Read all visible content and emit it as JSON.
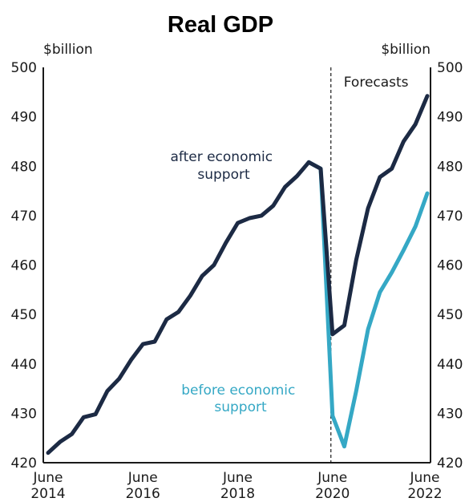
{
  "chart_data": {
    "type": "line",
    "title": "Real GDP",
    "y_unit_left": "$billion",
    "y_unit_right": "$billion",
    "ylim": [
      420,
      500
    ],
    "yticks": [
      420,
      430,
      440,
      450,
      460,
      470,
      480,
      490,
      500
    ],
    "x_tick_labels": [
      {
        "month": "June",
        "year": "2014",
        "x": 2014.25
      },
      {
        "month": "June",
        "year": "2016",
        "x": 2016.25
      },
      {
        "month": "June",
        "year": "2018",
        "x": 2018.25
      },
      {
        "month": "June",
        "year": "2020",
        "x": 2020.25
      },
      {
        "month": "June",
        "year": "2022",
        "x": 2022.25
      }
    ],
    "forecast_start": 2020.25,
    "forecast_label": "Forecasts",
    "series": [
      {
        "name": "after economic support",
        "color": "#1c2a44",
        "x": [
          2014.25,
          2014.5,
          2014.75,
          2015.0,
          2015.25,
          2015.5,
          2015.75,
          2016.0,
          2016.25,
          2016.5,
          2016.75,
          2017.0,
          2017.25,
          2017.5,
          2017.75,
          2018.0,
          2018.25,
          2018.5,
          2018.75,
          2019.0,
          2019.25,
          2019.5,
          2019.75,
          2020.0,
          2020.25,
          2020.5,
          2020.75,
          2021.0,
          2021.25,
          2021.5,
          2021.75,
          2022.0,
          2022.25
        ],
        "values": [
          422.0,
          424.2,
          425.8,
          429.2,
          429.8,
          434.5,
          437.0,
          440.8,
          444.0,
          444.5,
          449.0,
          450.5,
          453.8,
          457.8,
          460.0,
          464.5,
          468.5,
          469.5,
          470.0,
          472.0,
          475.8,
          478.0,
          480.8,
          479.5,
          446.0,
          447.8,
          461.0,
          471.5,
          477.8,
          479.5,
          485.0,
          488.5,
          494.2
        ]
      },
      {
        "name": "before economic support",
        "color": "#35a8c5",
        "x": [
          2019.75,
          2020.0,
          2020.25,
          2020.5,
          2020.75,
          2021.0,
          2021.25,
          2021.5,
          2021.75,
          2022.0,
          2022.25
        ],
        "values": [
          480.8,
          479.5,
          429.5,
          423.3,
          434.5,
          447.0,
          454.5,
          458.5,
          463.0,
          467.8,
          474.5
        ]
      }
    ],
    "annotations": {
      "after": {
        "lines": [
          "after economic",
          "support"
        ],
        "color": "#1c2a44"
      },
      "before": {
        "lines": [
          "before economic",
          "support"
        ],
        "color": "#35a8c5"
      }
    }
  }
}
